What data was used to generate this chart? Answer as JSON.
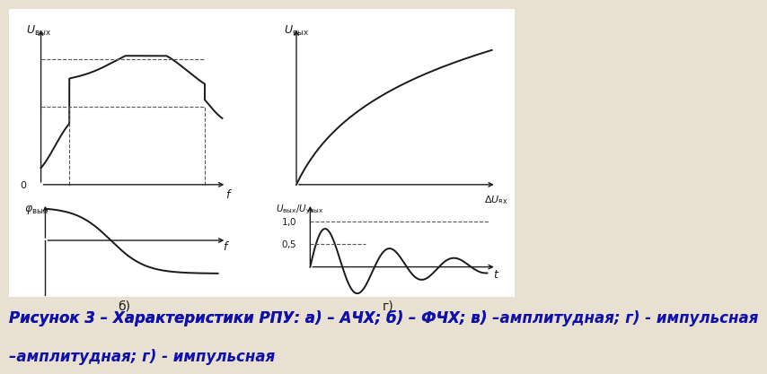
{
  "bg_color": "#e8e0d0",
  "white_color": "#ffffff",
  "line_color": "#1a1a1a",
  "dashed_color": "#555555",
  "caption_color": "#1010aa",
  "caption": "Рисунок 3 – Характеристики РПУ: а) – АЧХ; б) – ФЧХ; в) –амплитудная; г) - импульсная",
  "caption_fontsize": 12,
  "label_fontsize": 9,
  "sublabel_fontsize": 10
}
